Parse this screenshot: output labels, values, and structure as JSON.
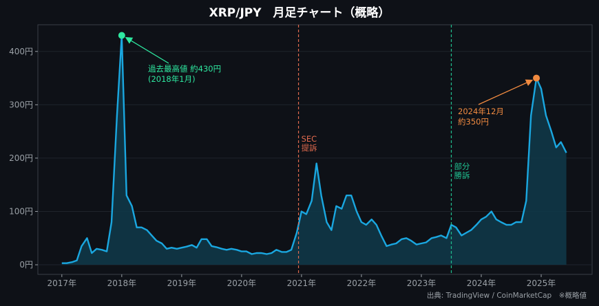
{
  "chart_data": {
    "type": "area",
    "title": "XRP/JPY　月足チャート（概略）",
    "source": "出典: TradingView / CoinMarketCap　※概略値",
    "ylim": [
      -18,
      450
    ],
    "xlim": [
      2016.6,
      2025.85
    ],
    "y_ticks": [
      0,
      100,
      200,
      300,
      400
    ],
    "y_tick_labels": [
      "0円",
      "100円",
      "200円",
      "300円",
      "400円"
    ],
    "x_ticks": [
      2017,
      2018,
      2019,
      2020,
      2021,
      2022,
      2023,
      2024,
      2025
    ],
    "x_tick_labels": [
      "2017年",
      "2018年",
      "2019年",
      "2020年",
      "2021年",
      "2022年",
      "2023年",
      "2024年",
      "2025年"
    ],
    "grid": true,
    "colors": {
      "line": "#1aa7e0",
      "fill": "#0f3a4a",
      "ath": "#2ee8a0",
      "recent": "#f08a40",
      "sec": "#e06a4e",
      "partial": "#20c090"
    },
    "series": [
      {
        "values": [
          [
            2017.0,
            3
          ],
          [
            2017.08,
            3
          ],
          [
            2017.17,
            5
          ],
          [
            2017.25,
            8
          ],
          [
            2017.33,
            35
          ],
          [
            2017.42,
            50
          ],
          [
            2017.5,
            22
          ],
          [
            2017.58,
            30
          ],
          [
            2017.67,
            28
          ],
          [
            2017.75,
            25
          ],
          [
            2017.83,
            80
          ],
          [
            2017.92,
            280
          ],
          [
            2018.0,
            430
          ],
          [
            2018.08,
            130
          ],
          [
            2018.17,
            110
          ],
          [
            2018.25,
            70
          ],
          [
            2018.33,
            70
          ],
          [
            2018.42,
            65
          ],
          [
            2018.5,
            55
          ],
          [
            2018.58,
            45
          ],
          [
            2018.67,
            40
          ],
          [
            2018.75,
            30
          ],
          [
            2018.83,
            32
          ],
          [
            2018.92,
            30
          ],
          [
            2019.0,
            32
          ],
          [
            2019.08,
            34
          ],
          [
            2019.17,
            37
          ],
          [
            2019.25,
            32
          ],
          [
            2019.33,
            48
          ],
          [
            2019.42,
            48
          ],
          [
            2019.5,
            35
          ],
          [
            2019.58,
            33
          ],
          [
            2019.67,
            30
          ],
          [
            2019.75,
            28
          ],
          [
            2019.83,
            30
          ],
          [
            2019.92,
            28
          ],
          [
            2020.0,
            25
          ],
          [
            2020.08,
            25
          ],
          [
            2020.17,
            20
          ],
          [
            2020.25,
            22
          ],
          [
            2020.33,
            22
          ],
          [
            2020.42,
            20
          ],
          [
            2020.5,
            22
          ],
          [
            2020.58,
            28
          ],
          [
            2020.67,
            24
          ],
          [
            2020.75,
            24
          ],
          [
            2020.83,
            28
          ],
          [
            2020.92,
            60
          ],
          [
            2021.0,
            100
          ],
          [
            2021.08,
            95
          ],
          [
            2021.17,
            120
          ],
          [
            2021.25,
            190
          ],
          [
            2021.33,
            130
          ],
          [
            2021.42,
            80
          ],
          [
            2021.5,
            65
          ],
          [
            2021.58,
            110
          ],
          [
            2021.67,
            105
          ],
          [
            2021.75,
            130
          ],
          [
            2021.83,
            130
          ],
          [
            2021.92,
            100
          ],
          [
            2022.0,
            80
          ],
          [
            2022.08,
            75
          ],
          [
            2022.17,
            85
          ],
          [
            2022.25,
            75
          ],
          [
            2022.33,
            55
          ],
          [
            2022.42,
            35
          ],
          [
            2022.5,
            38
          ],
          [
            2022.58,
            40
          ],
          [
            2022.67,
            48
          ],
          [
            2022.75,
            50
          ],
          [
            2022.83,
            45
          ],
          [
            2022.92,
            38
          ],
          [
            2023.0,
            40
          ],
          [
            2023.08,
            42
          ],
          [
            2023.17,
            50
          ],
          [
            2023.25,
            52
          ],
          [
            2023.33,
            55
          ],
          [
            2023.42,
            50
          ],
          [
            2023.5,
            75
          ],
          [
            2023.58,
            70
          ],
          [
            2023.67,
            55
          ],
          [
            2023.75,
            60
          ],
          [
            2023.83,
            65
          ],
          [
            2023.92,
            75
          ],
          [
            2024.0,
            85
          ],
          [
            2024.08,
            90
          ],
          [
            2024.17,
            100
          ],
          [
            2024.25,
            85
          ],
          [
            2024.33,
            80
          ],
          [
            2024.42,
            75
          ],
          [
            2024.5,
            75
          ],
          [
            2024.58,
            80
          ],
          [
            2024.67,
            80
          ],
          [
            2024.75,
            120
          ],
          [
            2024.83,
            280
          ],
          [
            2024.92,
            350
          ],
          [
            2025.0,
            330
          ],
          [
            2025.08,
            280
          ],
          [
            2025.17,
            250
          ],
          [
            2025.25,
            220
          ],
          [
            2025.33,
            230
          ],
          [
            2025.42,
            210
          ]
        ]
      }
    ],
    "vlines": [
      {
        "x": 2020.95,
        "label_lines": [
          "SEC",
          "提訴"
        ],
        "color_key": "sec"
      },
      {
        "x": 2023.5,
        "label_lines": [
          "部分",
          "勝訴"
        ],
        "color_key": "partial"
      }
    ],
    "annotations": [
      {
        "x": 2018.0,
        "y": 430,
        "lines": [
          "過去最高値 約430円",
          "(2018年1月)"
        ],
        "color_key": "ath"
      },
      {
        "x": 2024.92,
        "y": 350,
        "lines": [
          "2024年12月",
          "約350円"
        ],
        "color_key": "recent"
      }
    ]
  }
}
